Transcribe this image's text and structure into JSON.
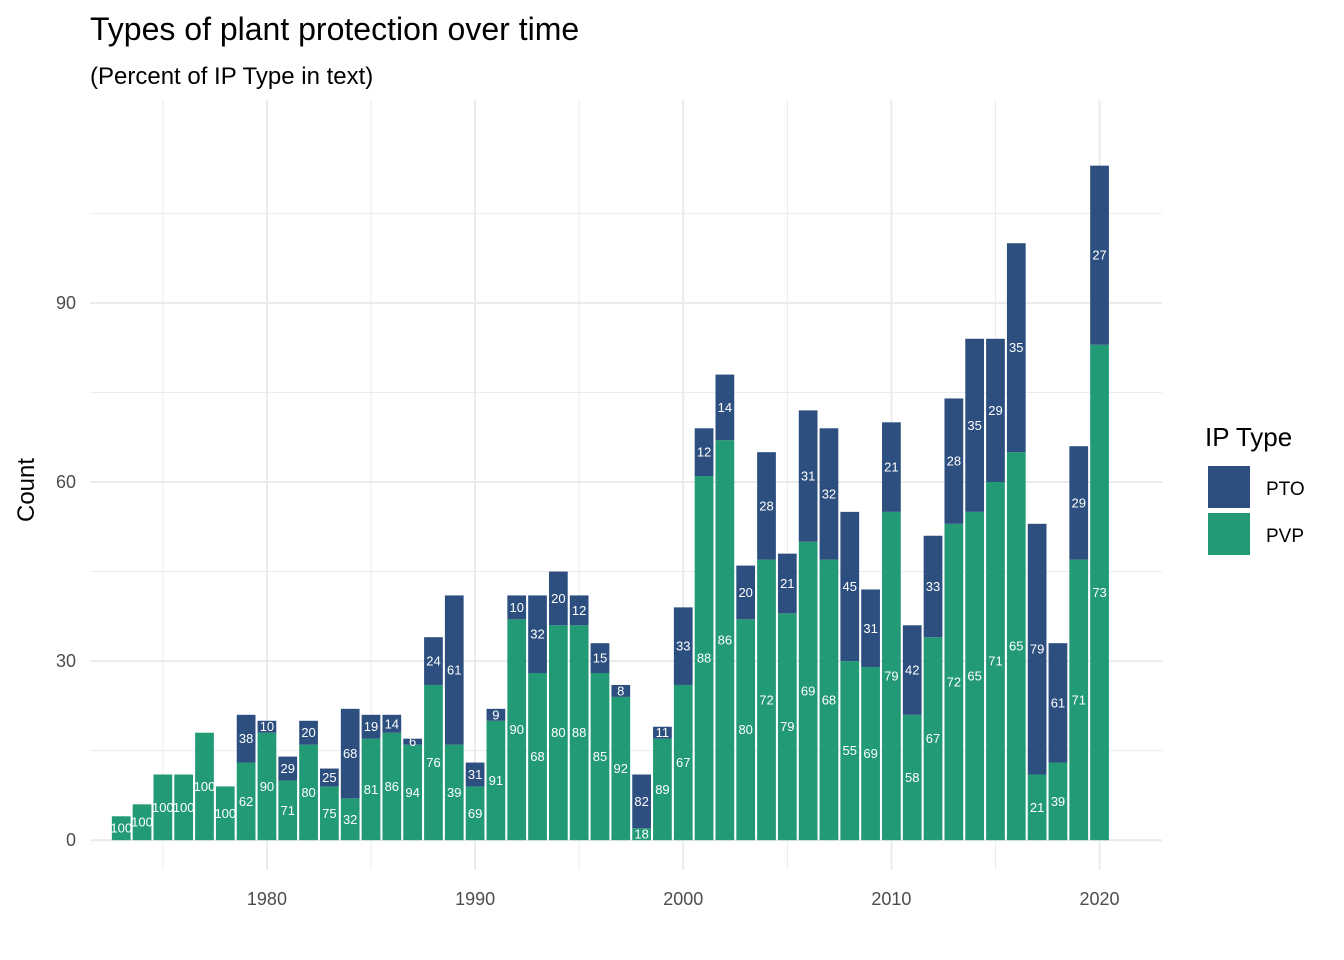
{
  "chart_data": {
    "type": "bar",
    "stacked": true,
    "title": "Types of plant protection over time",
    "subtitle": "(Percent of IP Type in text)",
    "xlabel": "",
    "ylabel": "Count",
    "xlim": [
      1971.5,
      2023
    ],
    "ylim": [
      -5,
      124
    ],
    "x_ticks": [
      1980,
      1990,
      2000,
      2010,
      2020
    ],
    "y_ticks": [
      0,
      30,
      60,
      90
    ],
    "grid": true,
    "legend": {
      "title": "IP Type",
      "position": "right",
      "items": [
        {
          "label": "PTO",
          "color": "#2d4f7f"
        },
        {
          "label": "PVP",
          "color": "#229a75"
        }
      ]
    },
    "colors": {
      "PTO": "#2d4f7f",
      "PVP": "#229a75",
      "grid": "#ebebeb"
    },
    "bars": [
      {
        "year": 1973,
        "pvp": 4,
        "pto": 0,
        "pvp_pct": "100",
        "pto_pct": ""
      },
      {
        "year": 1974,
        "pvp": 6,
        "pto": 0,
        "pvp_pct": "100",
        "pto_pct": ""
      },
      {
        "year": 1975,
        "pvp": 11,
        "pto": 0,
        "pvp_pct": "100",
        "pto_pct": ""
      },
      {
        "year": 1976,
        "pvp": 11,
        "pto": 0,
        "pvp_pct": "100",
        "pto_pct": ""
      },
      {
        "year": 1977,
        "pvp": 18,
        "pto": 0,
        "pvp_pct": "100",
        "pto_pct": ""
      },
      {
        "year": 1978,
        "pvp": 9,
        "pto": 0,
        "pvp_pct": "100",
        "pto_pct": ""
      },
      {
        "year": 1979,
        "pvp": 13,
        "pto": 8,
        "pvp_pct": "62",
        "pto_pct": "38"
      },
      {
        "year": 1980,
        "pvp": 18,
        "pto": 2,
        "pvp_pct": "90",
        "pto_pct": "10"
      },
      {
        "year": 1981,
        "pvp": 10,
        "pto": 4,
        "pvp_pct": "71",
        "pto_pct": "29"
      },
      {
        "year": 1982,
        "pvp": 16,
        "pto": 4,
        "pvp_pct": "80",
        "pto_pct": "20"
      },
      {
        "year": 1983,
        "pvp": 9,
        "pto": 3,
        "pvp_pct": "75",
        "pto_pct": "25"
      },
      {
        "year": 1984,
        "pvp": 7,
        "pto": 15,
        "pvp_pct": "32",
        "pto_pct": "68"
      },
      {
        "year": 1985,
        "pvp": 17,
        "pto": 4,
        "pvp_pct": "81",
        "pto_pct": "19"
      },
      {
        "year": 1986,
        "pvp": 18,
        "pto": 3,
        "pvp_pct": "86",
        "pto_pct": "14"
      },
      {
        "year": 1987,
        "pvp": 16,
        "pto": 1,
        "pvp_pct": "94",
        "pto_pct": "6"
      },
      {
        "year": 1988,
        "pvp": 26,
        "pto": 8,
        "pvp_pct": "76",
        "pto_pct": "24"
      },
      {
        "year": 1989,
        "pvp": 16,
        "pto": 25,
        "pvp_pct": "39",
        "pto_pct": "61"
      },
      {
        "year": 1990,
        "pvp": 9,
        "pto": 4,
        "pvp_pct": "69",
        "pto_pct": "31"
      },
      {
        "year": 1991,
        "pvp": 20,
        "pto": 2,
        "pvp_pct": "91",
        "pto_pct": "9"
      },
      {
        "year": 1992,
        "pvp": 37,
        "pto": 4,
        "pvp_pct": "90",
        "pto_pct": "10"
      },
      {
        "year": 1993,
        "pvp": 28,
        "pto": 13,
        "pvp_pct": "68",
        "pto_pct": "32"
      },
      {
        "year": 1994,
        "pvp": 36,
        "pto": 9,
        "pvp_pct": "80",
        "pto_pct": "20"
      },
      {
        "year": 1995,
        "pvp": 36,
        "pto": 5,
        "pvp_pct": "88",
        "pto_pct": "12"
      },
      {
        "year": 1996,
        "pvp": 28,
        "pto": 5,
        "pvp_pct": "85",
        "pto_pct": "15"
      },
      {
        "year": 1997,
        "pvp": 24,
        "pto": 2,
        "pvp_pct": "92",
        "pto_pct": "8"
      },
      {
        "year": 1998,
        "pvp": 2,
        "pto": 9,
        "pvp_pct": "18",
        "pto_pct": "82"
      },
      {
        "year": 1999,
        "pvp": 17,
        "pto": 2,
        "pvp_pct": "89",
        "pto_pct": "11"
      },
      {
        "year": 2000,
        "pvp": 26,
        "pto": 13,
        "pvp_pct": "67",
        "pto_pct": "33"
      },
      {
        "year": 2001,
        "pvp": 61,
        "pto": 8,
        "pvp_pct": "88",
        "pto_pct": "12"
      },
      {
        "year": 2002,
        "pvp": 67,
        "pto": 11,
        "pvp_pct": "86",
        "pto_pct": "14"
      },
      {
        "year": 2003,
        "pvp": 37,
        "pto": 9,
        "pvp_pct": "80",
        "pto_pct": "20"
      },
      {
        "year": 2004,
        "pvp": 47,
        "pto": 18,
        "pvp_pct": "72",
        "pto_pct": "28"
      },
      {
        "year": 2005,
        "pvp": 38,
        "pto": 10,
        "pvp_pct": "79",
        "pto_pct": "21"
      },
      {
        "year": 2006,
        "pvp": 50,
        "pto": 22,
        "pvp_pct": "69",
        "pto_pct": "31"
      },
      {
        "year": 2007,
        "pvp": 47,
        "pto": 22,
        "pvp_pct": "68",
        "pto_pct": "32"
      },
      {
        "year": 2008,
        "pvp": 30,
        "pto": 25,
        "pvp_pct": "55",
        "pto_pct": "45"
      },
      {
        "year": 2009,
        "pvp": 29,
        "pto": 13,
        "pvp_pct": "69",
        "pto_pct": "31"
      },
      {
        "year": 2010,
        "pvp": 55,
        "pto": 15,
        "pvp_pct": "79",
        "pto_pct": "21"
      },
      {
        "year": 2011,
        "pvp": 21,
        "pto": 15,
        "pvp_pct": "58",
        "pto_pct": "42"
      },
      {
        "year": 2012,
        "pvp": 34,
        "pto": 17,
        "pvp_pct": "67",
        "pto_pct": "33"
      },
      {
        "year": 2013,
        "pvp": 53,
        "pto": 21,
        "pvp_pct": "72",
        "pto_pct": "28"
      },
      {
        "year": 2014,
        "pvp": 55,
        "pto": 29,
        "pvp_pct": "65",
        "pto_pct": "35"
      },
      {
        "year": 2015,
        "pvp": 60,
        "pto": 24,
        "pvp_pct": "71",
        "pto_pct": "29"
      },
      {
        "year": 2016,
        "pvp": 65,
        "pto": 35,
        "pvp_pct": "65",
        "pto_pct": "35"
      },
      {
        "year": 2017,
        "pvp": 11,
        "pto": 42,
        "pvp_pct": "21",
        "pto_pct": "79"
      },
      {
        "year": 2018,
        "pvp": 13,
        "pto": 20,
        "pvp_pct": "39",
        "pto_pct": "61"
      },
      {
        "year": 2019,
        "pvp": 47,
        "pto": 19,
        "pvp_pct": "71",
        "pto_pct": "29"
      },
      {
        "year": 2020,
        "pvp": 83,
        "pto": 30,
        "pvp_pct": "73",
        "pto_pct": "27"
      }
    ]
  }
}
